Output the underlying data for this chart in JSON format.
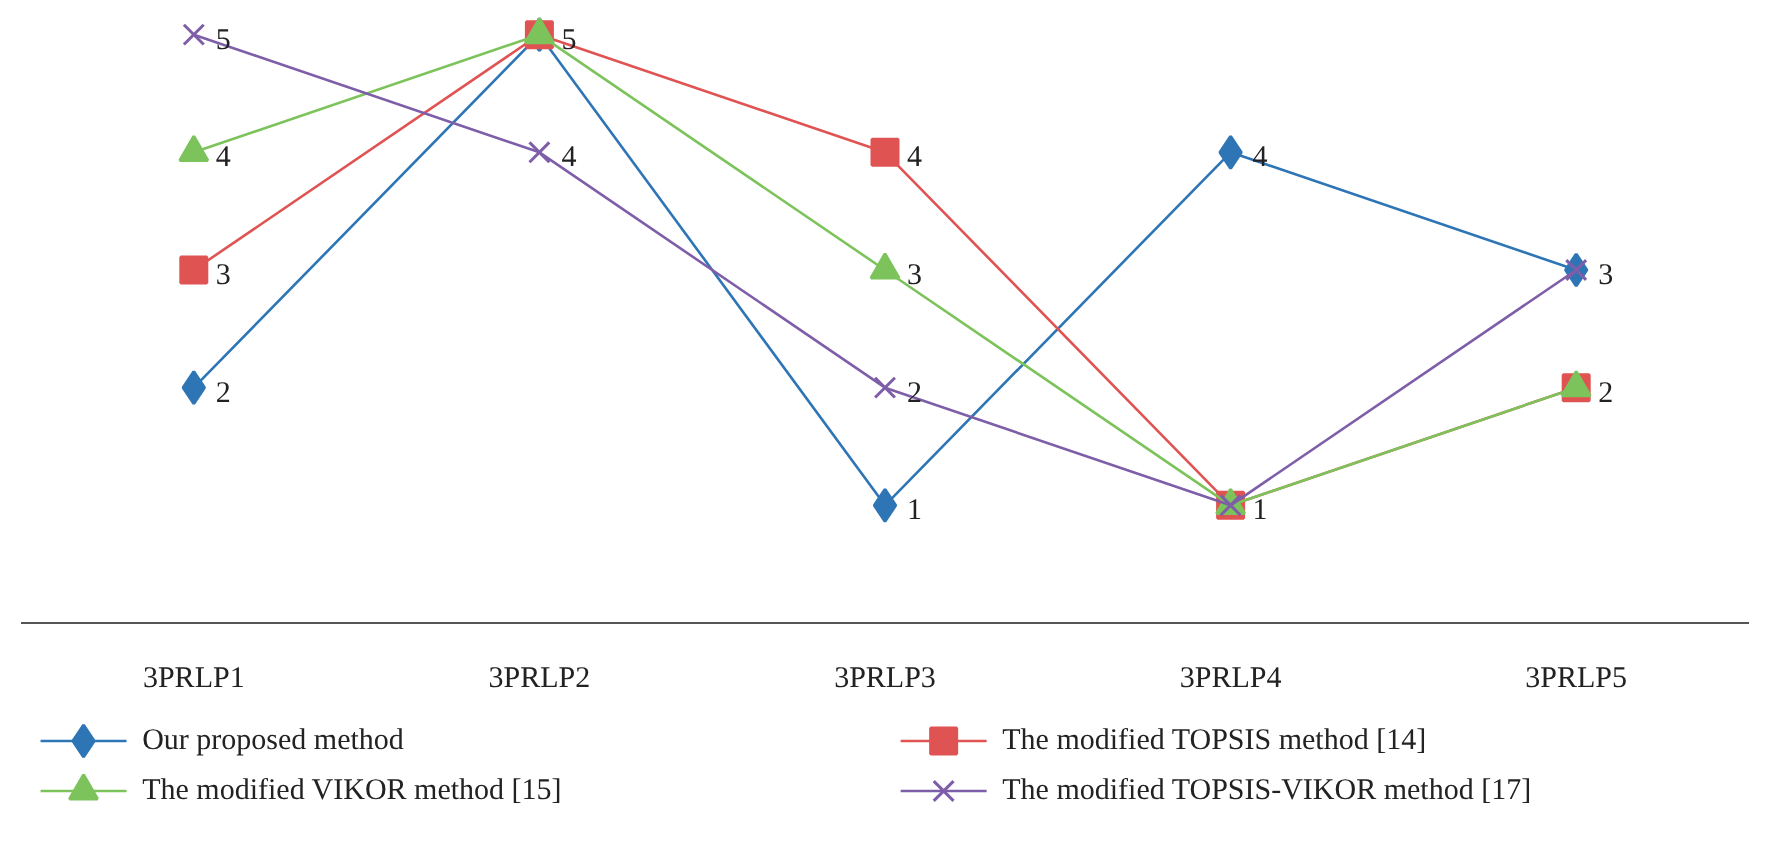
{
  "chart_data": {
    "type": "line",
    "categories": [
      "3PRLP1",
      "3PRLP2",
      "3PRLP3",
      "3PRLP4",
      "3PRLP5"
    ],
    "tick_labels": "x",
    "grid": false,
    "legend": "bottom",
    "line_style": "solid",
    "series": [
      {
        "name": "Our proposed method",
        "color": "#2e75b6",
        "marker": "diamond",
        "values": [
          2,
          5,
          1,
          4,
          3
        ],
        "value_labels": [
          "2",
          null,
          "1",
          "4",
          null
        ]
      },
      {
        "name": "The modified TOPSIS method [14]",
        "color": "#e05353",
        "marker": "square",
        "values": [
          3,
          5,
          4,
          1,
          2
        ],
        "value_labels": [
          "3",
          "5",
          "4",
          null,
          "2"
        ]
      },
      {
        "name": "The modified VIKOR method [15]",
        "color": "#7dc35b",
        "marker": "triangle",
        "values": [
          4,
          5,
          3,
          1,
          2
        ],
        "value_labels": [
          "4",
          null,
          "3",
          null,
          null
        ]
      },
      {
        "name": "The modified TOPSIS-VIKOR method [17]",
        "color": "#7e5ea8",
        "marker": "cross",
        "values": [
          5,
          4,
          2,
          1,
          3
        ],
        "value_labels": [
          "5",
          "4",
          "2",
          "1",
          "3"
        ]
      }
    ]
  }
}
